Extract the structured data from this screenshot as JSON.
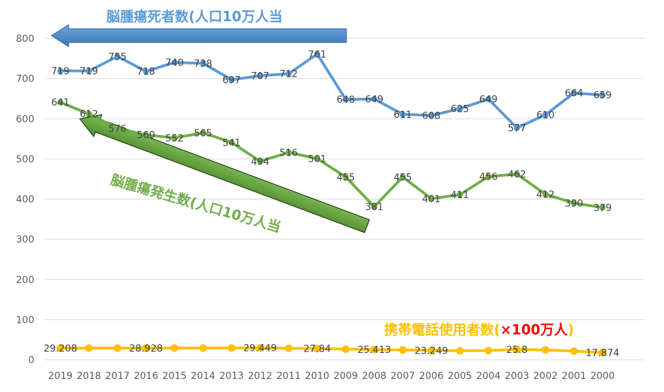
{
  "chart_data": {
    "type": "line",
    "categories": [
      "2019",
      "2018",
      "2017",
      "2016",
      "2015",
      "2014",
      "2013",
      "2012",
      "2011",
      "2010",
      "2009",
      "2008",
      "2007",
      "2006",
      "2005",
      "2004",
      "2003",
      "2002",
      "2001",
      "2000"
    ],
    "ylim": [
      0,
      800
    ],
    "yticks": [
      0,
      100,
      200,
      300,
      400,
      500,
      600,
      700,
      800
    ],
    "grid": true,
    "series": [
      {
        "name": "脳腫瘍死者数(人口10万人当",
        "color": "#5B9BD5",
        "values": [
          719,
          719,
          755,
          718,
          740,
          738,
          697,
          707,
          712,
          761,
          648,
          649,
          611,
          608,
          625,
          649,
          577,
          610,
          664,
          659
        ],
        "labels": [
          "719",
          "719",
          "755",
          "718",
          "740",
          "738",
          "697",
          "707",
          "712",
          "761",
          "648",
          "649",
          "611",
          "608",
          "625",
          "649",
          "577",
          "610",
          "664",
          "659"
        ]
      },
      {
        "name": "脳腫瘍発生数(人口10万人当",
        "color": "#70AD47",
        "values": [
          641,
          612,
          576,
          560,
          552,
          565,
          541,
          494,
          516,
          501,
          455,
          381,
          455,
          401,
          411,
          456,
          462,
          412,
          390,
          379
        ],
        "labels": [
          "641",
          "612",
          "576",
          "560",
          "552",
          "565",
          "541",
          "494",
          "516",
          "501",
          "455",
          "381",
          "455",
          "401",
          "411",
          "456",
          "462",
          "412",
          "390",
          "379"
        ]
      },
      {
        "name": "携帯電話使用者数(×100万人)",
        "color": "#FFC000",
        "values": [
          29.208,
          29.0,
          29.0,
          28.928,
          29.2,
          29.3,
          29.4,
          29.449,
          28.5,
          27.84,
          26.5,
          25.413,
          24.5,
          23.249,
          22.5,
          23.0,
          25.8,
          24.5,
          21.5,
          17.874
        ],
        "labels": [
          "29.208",
          "",
          "",
          "28.928",
          "",
          "",
          "",
          "29.449",
          "",
          "27.84",
          "",
          "25.413",
          "",
          "23.249",
          "",
          "",
          "25.8",
          "",
          "",
          "17.874"
        ]
      }
    ],
    "annotations": {
      "deaths_title": "脳腫瘍死者数(人口10万人当",
      "incidence_title": "脳腫瘍発生数(人口10万人当",
      "phone_title_prefix": "携帯電話使用者数(",
      "phone_title_times": "×",
      "phone_title_value": "100万人",
      "phone_title_suffix": ")",
      "deaths_title_color": "#5B9BD5",
      "incidence_title_color": "#70AD47",
      "phone_title_color": "#FFC000",
      "phone_value_color": "#FF0000"
    }
  }
}
